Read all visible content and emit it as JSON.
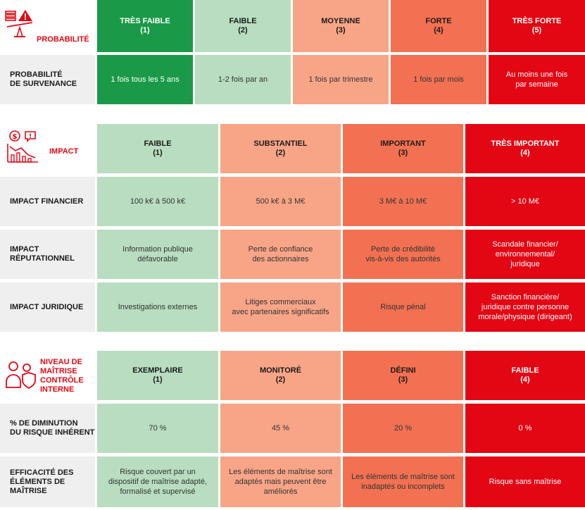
{
  "probabilite": {
    "title": "PROBABILITÉ",
    "headers": [
      {
        "label": "TRÈS FAIBLE",
        "num": "(1)"
      },
      {
        "label": "FAIBLE",
        "num": "(2)"
      },
      {
        "label": "MOYENNE",
        "num": "(3)"
      },
      {
        "label": "FORTE",
        "num": "(4)"
      },
      {
        "label": "TRÈS FORTE",
        "num": "(5)"
      }
    ],
    "row_label": "PROBABILITÉ\nDE SURVENANCE",
    "values": [
      "1 fois tous les 5 ans",
      "1-2 fois par an",
      "1 fois par trimestre",
      "1 fois par mois",
      "Au moins une fois\npar semaine"
    ]
  },
  "impact": {
    "title": "IMPACT",
    "headers": [
      {
        "label": "FAIBLE",
        "num": "(1)"
      },
      {
        "label": "SUBSTANTIEL",
        "num": "(2)"
      },
      {
        "label": "IMPORTANT",
        "num": "(3)"
      },
      {
        "label": "TRÈS IMPORTANT",
        "num": "(4)"
      }
    ],
    "rows": [
      {
        "label": "IMPACT FINANCIER",
        "values": [
          "100 k€ à 500 k€",
          "500 k€ à 3 M€",
          "3 M€ à 10 M€",
          "> 10 M€"
        ]
      },
      {
        "label": "IMPACT\nRÉPUTATIONNEL",
        "values": [
          "Information publique\ndéfavorable",
          "Perte de confiance\ndes actionnaires",
          "Perte de crédibilité\nvis-à-vis des autorités",
          "Scandale financier/\nenvironnemental/\njuridique"
        ]
      },
      {
        "label": "IMPACT JURIDIQUE",
        "values": [
          "Investigations externes",
          "Litiges commerciaux\navec partenaires significatifs",
          "Risque pénal",
          "Sanction financière/\njuridique contre personne\nmorale/physique (dirigeant)"
        ]
      }
    ]
  },
  "maitrise": {
    "title": "NIVEAU DE\nMAÎTRISE\nCONTRÔLE\nINTERNE",
    "headers": [
      {
        "label": "EXEMPLAIRE",
        "num": "(1)"
      },
      {
        "label": "MONITORÉ",
        "num": "(2)"
      },
      {
        "label": "DÉFINI",
        "num": "(3)"
      },
      {
        "label": "FAIBLE",
        "num": "(4)"
      }
    ],
    "rows": [
      {
        "label": "% DE DIMINUTION\nDU RISQUE INHÉRENT",
        "values": [
          "70 %",
          "45 %",
          "20 %",
          "0 %"
        ]
      },
      {
        "label": "EFFICACITÉ DES\nÉLÉMENTS DE\nMAÎTRISE",
        "values": [
          "Risque couvert par un\ndispositif de maîtrise adapté,\nformalisé et supervisé",
          "Les éléments de maîtrise sont\nadaptés mais peuvent être\naméliorés",
          "Les éléments de maîtrise sont\ninadaptés ou incomplets",
          "Risque sans maîtrise"
        ]
      }
    ]
  },
  "icons": [
    "balance-scale-icon",
    "chart-decline-icon",
    "people-shield-icon"
  ],
  "colors": {
    "accent_red": "#e30613",
    "dark_green": "#1a9a48",
    "light_green": "#b8ddc0",
    "salmon": "#f8a587",
    "orange_red": "#f27152",
    "label_gray": "#efefef"
  }
}
